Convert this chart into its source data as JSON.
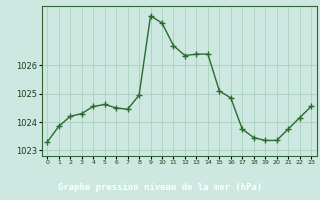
{
  "x": [
    0,
    1,
    2,
    3,
    4,
    5,
    6,
    7,
    8,
    9,
    10,
    11,
    12,
    13,
    14,
    15,
    16,
    17,
    18,
    19,
    20,
    21,
    22,
    23
  ],
  "y": [
    1023.3,
    1023.85,
    1024.2,
    1024.3,
    1024.55,
    1024.62,
    1024.5,
    1024.45,
    1024.95,
    1027.75,
    1027.5,
    1026.7,
    1026.35,
    1026.4,
    1026.4,
    1025.1,
    1024.85,
    1023.75,
    1023.45,
    1023.35,
    1023.35,
    1023.75,
    1024.15,
    1024.55
  ],
  "ylim": [
    1022.8,
    1028.1
  ],
  "yticks": [
    1023,
    1024,
    1025,
    1026
  ],
  "xlabel": "Graphe pression niveau de la mer (hPa)",
  "line_color": "#2d6a2d",
  "marker_color": "#2d6a2d",
  "bg_color": "#cce8e0",
  "grid_color": "#aacfbf",
  "border_color": "#336633",
  "label_color": "#1a3d1a",
  "footer_bg": "#336633",
  "footer_text_color": "#ffffff"
}
